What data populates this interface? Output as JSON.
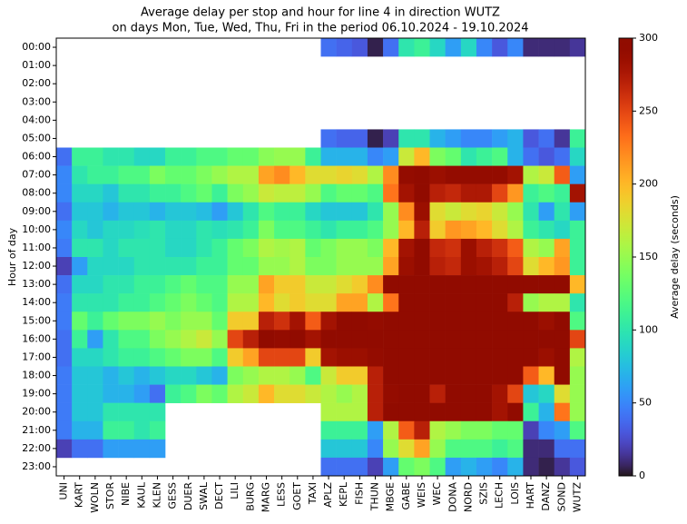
{
  "chart_data": {
    "type": "heatmap",
    "title": "Average delay per stop and hour for line 4 in direction WUTZ",
    "subtitle": "on days Mon, Tue, Wed, Thu, Fri in the period 06.10.2024 - 19.10.2024",
    "y_label": "Hour of day",
    "colorbar_label": "Average delay (seconds)",
    "colormap": "turbo",
    "clim": [
      0,
      300
    ],
    "cticks": [
      0,
      50,
      100,
      150,
      200,
      250,
      300
    ],
    "x": [
      "UNI",
      "KART",
      "WOLN",
      "STOR",
      "NIBE",
      "KAUL",
      "KLEN",
      "GESS",
      "DUER",
      "SWAL",
      "DECT",
      "LILI",
      "BURG",
      "MARG",
      "LESS",
      "GOET",
      "TAXI",
      "APLZ",
      "KEPL",
      "FISH",
      "THUN",
      "MBGE",
      "GABE",
      "WEIS",
      "WEC",
      "DONA",
      "NORD",
      "SZIS",
      "LECH",
      "LOIS",
      "HART",
      "DANZ",
      "SOND",
      "WUTZ"
    ],
    "y": [
      "00:00",
      "01:00",
      "02:00",
      "03:00",
      "04:00",
      "05:00",
      "06:00",
      "07:00",
      "08:00",
      "09:00",
      "10:00",
      "11:00",
      "12:00",
      "13:00",
      "14:00",
      "15:00",
      "16:00",
      "17:00",
      "18:00",
      "19:00",
      "20:00",
      "21:00",
      "22:00",
      "23:00"
    ],
    "values": [
      [
        null,
        null,
        null,
        null,
        null,
        null,
        null,
        null,
        null,
        null,
        null,
        null,
        null,
        null,
        null,
        null,
        null,
        40,
        35,
        30,
        5,
        40,
        100,
        110,
        90,
        60,
        90,
        50,
        30,
        50,
        10,
        10,
        10,
        15
      ],
      [
        null,
        null,
        null,
        null,
        null,
        null,
        null,
        null,
        null,
        null,
        null,
        null,
        null,
        null,
        null,
        null,
        null,
        null,
        null,
        null,
        null,
        null,
        null,
        null,
        null,
        null,
        null,
        null,
        null,
        null,
        null,
        null,
        null,
        null
      ],
      [
        null,
        null,
        null,
        null,
        null,
        null,
        null,
        null,
        null,
        null,
        null,
        null,
        null,
        null,
        null,
        null,
        null,
        null,
        null,
        null,
        null,
        null,
        null,
        null,
        null,
        null,
        null,
        null,
        null,
        null,
        null,
        null,
        null,
        null
      ],
      [
        null,
        null,
        null,
        null,
        null,
        null,
        null,
        null,
        null,
        null,
        null,
        null,
        null,
        null,
        null,
        null,
        null,
        null,
        null,
        null,
        null,
        null,
        null,
        null,
        null,
        null,
        null,
        null,
        null,
        null,
        null,
        null,
        null,
        null
      ],
      [
        null,
        null,
        null,
        null,
        null,
        null,
        null,
        null,
        null,
        null,
        null,
        null,
        null,
        null,
        null,
        null,
        null,
        null,
        null,
        null,
        null,
        null,
        null,
        null,
        null,
        null,
        null,
        null,
        null,
        null,
        null,
        null,
        null,
        null
      ],
      [
        null,
        null,
        null,
        null,
        null,
        null,
        null,
        null,
        null,
        null,
        null,
        null,
        null,
        null,
        null,
        null,
        null,
        40,
        35,
        35,
        5,
        20,
        100,
        100,
        70,
        60,
        50,
        50,
        60,
        70,
        30,
        40,
        15,
        110
      ],
      [
        40,
        110,
        110,
        100,
        100,
        90,
        90,
        110,
        110,
        120,
        120,
        130,
        130,
        145,
        150,
        150,
        110,
        70,
        70,
        70,
        50,
        60,
        170,
        200,
        140,
        130,
        100,
        110,
        120,
        70,
        40,
        30,
        40,
        90
      ],
      [
        50,
        100,
        110,
        110,
        120,
        120,
        140,
        130,
        130,
        140,
        150,
        160,
        160,
        210,
        220,
        200,
        180,
        180,
        185,
        180,
        160,
        220,
        290,
        295,
        285,
        290,
        290,
        290,
        290,
        280,
        160,
        170,
        240,
        60
      ],
      [
        50,
        90,
        90,
        80,
        100,
        100,
        110,
        110,
        120,
        130,
        110,
        140,
        150,
        170,
        165,
        165,
        150,
        120,
        130,
        130,
        120,
        230,
        280,
        295,
        270,
        265,
        275,
        275,
        250,
        215,
        110,
        120,
        110,
        280
      ],
      [
        40,
        80,
        80,
        70,
        80,
        80,
        70,
        80,
        80,
        75,
        60,
        80,
        100,
        120,
        110,
        110,
        90,
        80,
        80,
        80,
        100,
        150,
        220,
        285,
        180,
        170,
        180,
        185,
        170,
        150,
        100,
        60,
        100,
        60
      ],
      [
        50,
        90,
        80,
        90,
        90,
        95,
        100,
        90,
        90,
        100,
        95,
        100,
        110,
        140,
        120,
        120,
        110,
        100,
        110,
        110,
        120,
        150,
        200,
        270,
        190,
        215,
        210,
        200,
        180,
        160,
        110,
        100,
        90,
        110
      ],
      [
        45,
        100,
        100,
        90,
        100,
        100,
        100,
        90,
        90,
        100,
        110,
        130,
        140,
        160,
        155,
        160,
        130,
        140,
        150,
        150,
        140,
        200,
        280,
        295,
        265,
        260,
        285,
        270,
        260,
        240,
        160,
        150,
        210,
        110
      ],
      [
        20,
        60,
        90,
        90,
        90,
        100,
        100,
        100,
        100,
        110,
        110,
        130,
        130,
        150,
        150,
        160,
        140,
        140,
        150,
        150,
        150,
        210,
        285,
        295,
        270,
        265,
        285,
        280,
        270,
        250,
        180,
        200,
        215,
        110
      ],
      [
        40,
        90,
        90,
        100,
        100,
        110,
        110,
        120,
        130,
        120,
        120,
        150,
        150,
        210,
        190,
        190,
        170,
        170,
        180,
        190,
        220,
        295,
        295,
        295,
        295,
        295,
        295,
        295,
        295,
        295,
        295,
        295,
        295,
        200
      ],
      [
        45,
        100,
        100,
        100,
        110,
        110,
        120,
        130,
        140,
        130,
        120,
        160,
        160,
        200,
        180,
        190,
        180,
        180,
        210,
        210,
        160,
        230,
        295,
        295,
        295,
        295,
        295,
        295,
        295,
        270,
        150,
        160,
        160,
        100
      ],
      [
        45,
        130,
        110,
        130,
        140,
        140,
        150,
        140,
        150,
        150,
        130,
        190,
        190,
        270,
        260,
        280,
        240,
        280,
        295,
        295,
        290,
        295,
        295,
        295,
        295,
        295,
        295,
        295,
        295,
        295,
        295,
        285,
        295,
        120
      ],
      [
        40,
        110,
        60,
        100,
        120,
        120,
        140,
        150,
        160,
        170,
        150,
        250,
        270,
        295,
        290,
        295,
        280,
        295,
        295,
        295,
        295,
        295,
        295,
        295,
        295,
        295,
        295,
        295,
        295,
        295,
        295,
        295,
        295,
        250
      ],
      [
        40,
        90,
        90,
        100,
        110,
        110,
        120,
        130,
        140,
        140,
        120,
        190,
        210,
        250,
        250,
        250,
        190,
        280,
        285,
        285,
        290,
        295,
        295,
        295,
        295,
        295,
        295,
        295,
        295,
        295,
        295,
        285,
        295,
        160
      ],
      [
        45,
        80,
        80,
        70,
        80,
        70,
        80,
        90,
        90,
        80,
        70,
        140,
        150,
        160,
        160,
        150,
        120,
        170,
        190,
        190,
        270,
        295,
        295,
        295,
        295,
        295,
        295,
        295,
        295,
        295,
        240,
        200,
        295,
        150
      ],
      [
        45,
        80,
        80,
        70,
        70,
        60,
        40,
        110,
        120,
        140,
        130,
        160,
        170,
        200,
        180,
        180,
        170,
        160,
        150,
        160,
        270,
        290,
        295,
        295,
        270,
        295,
        295,
        295,
        280,
        250,
        80,
        90,
        180,
        150
      ],
      [
        45,
        80,
        80,
        100,
        100,
        100,
        100,
        null,
        null,
        null,
        null,
        null,
        null,
        null,
        null,
        null,
        null,
        160,
        160,
        160,
        270,
        295,
        295,
        295,
        295,
        295,
        295,
        295,
        280,
        295,
        110,
        70,
        230,
        150
      ],
      [
        45,
        70,
        70,
        110,
        110,
        100,
        110,
        null,
        null,
        null,
        null,
        null,
        null,
        null,
        null,
        null,
        null,
        110,
        110,
        110,
        60,
        160,
        240,
        270,
        160,
        150,
        140,
        140,
        130,
        130,
        20,
        50,
        60,
        120
      ],
      [
        20,
        40,
        40,
        60,
        60,
        60,
        60,
        null,
        null,
        null,
        null,
        null,
        null,
        null,
        null,
        null,
        null,
        80,
        80,
        80,
        50,
        150,
        180,
        210,
        150,
        120,
        120,
        120,
        110,
        120,
        10,
        10,
        40,
        40
      ],
      [
        null,
        null,
        null,
        null,
        null,
        null,
        null,
        null,
        null,
        null,
        null,
        null,
        null,
        null,
        null,
        null,
        null,
        40,
        40,
        40,
        20,
        60,
        130,
        140,
        120,
        60,
        70,
        60,
        50,
        70,
        10,
        5,
        15,
        30
      ]
    ]
  }
}
